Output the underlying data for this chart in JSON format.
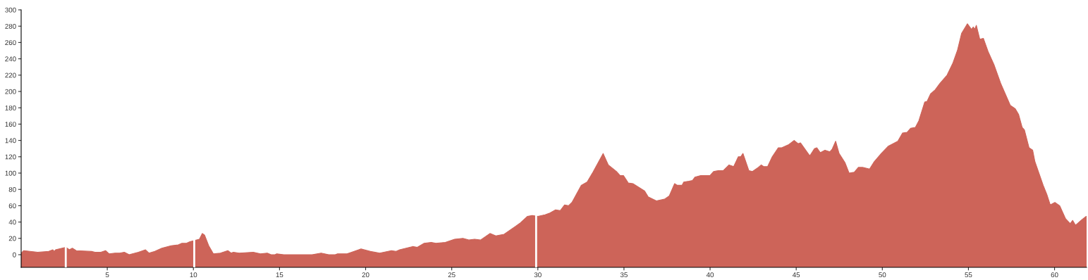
{
  "chart_data": {
    "type": "area",
    "xlim": [
      0,
      61.86
    ],
    "ylim": [
      -15.5,
      300
    ],
    "xticks": [
      5,
      10,
      15,
      20,
      25,
      30,
      35,
      40,
      45,
      50,
      55,
      60
    ],
    "yticks": [
      0,
      20,
      40,
      60,
      80,
      100,
      120,
      140,
      160,
      180,
      200,
      220,
      240,
      260,
      280,
      300
    ],
    "grid": false,
    "legend": false,
    "bands": [
      {
        "axis": "y",
        "from": -15.5,
        "to": 0,
        "color": "#cd6459"
      }
    ],
    "ref_lines": [
      {
        "axis": "x",
        "value": 2.59,
        "color": "#ffffff"
      },
      {
        "axis": "x",
        "value": 10.05,
        "color": "#ffffff"
      },
      {
        "axis": "x",
        "value": 29.9,
        "color": "#ffffff"
      }
    ],
    "series": [
      {
        "color": "#cd6459",
        "x": [
          0,
          0.15,
          0.96,
          1.6,
          1.84,
          1.92,
          2.0,
          2.59,
          2.8,
          2.97,
          3.2,
          4.09,
          4.29,
          4.63,
          4.9,
          5.11,
          5.45,
          5.72,
          5.99,
          6.27,
          6.81,
          7.22,
          7.42,
          7.76,
          8.17,
          8.71,
          9.12,
          9.33,
          9.6,
          9.8,
          10.35,
          10.52,
          10.65,
          10.89,
          11.16,
          11.57,
          12.0,
          12.19,
          12.32,
          12.66,
          13.48,
          13.89,
          14.29,
          14.63,
          14.84,
          15.65,
          16.33,
          16.6,
          17.42,
          18.1,
          18.37,
          18.92,
          19.19,
          19.73,
          20.28,
          20.82,
          21.5,
          21.77,
          21.98,
          22.73,
          23.0,
          23.4,
          23.81,
          24.08,
          24.63,
          25.17,
          25.65,
          25.99,
          26.33,
          26.67,
          27.22,
          27.56,
          28.04,
          28.72,
          28.99,
          29.4,
          29.67,
          30.01,
          30.42,
          30.7,
          31.03,
          31.3,
          31.55,
          31.78,
          31.98,
          32.52,
          32.86,
          33.2,
          33.79,
          34.09,
          34.56,
          34.77,
          34.97,
          35.25,
          35.52,
          36.2,
          36.4,
          36.88,
          37.35,
          37.63,
          37.94,
          38.1,
          38.37,
          38.47,
          38.78,
          38.98,
          39.12,
          39.46,
          40.0,
          40.21,
          40.48,
          40.76,
          41.1,
          41.37,
          41.64,
          41.78,
          41.91,
          42.25,
          42.46,
          42.8,
          42.97,
          43.11,
          43.34,
          43.61,
          43.96,
          44.16,
          44.57,
          44.88,
          45.11,
          45.25,
          45.79,
          46.06,
          46.2,
          46.4,
          46.67,
          46.95,
          47.08,
          47.29,
          47.49,
          47.83,
          48.07,
          48.37,
          48.61,
          48.85,
          49.26,
          49.53,
          49.94,
          50.35,
          50.9,
          51.17,
          51.44,
          51.65,
          51.92,
          52.12,
          52.46,
          52.6,
          52.8,
          53.07,
          53.35,
          53.76,
          54.1,
          54.37,
          54.6,
          54.94,
          55.18,
          55.28,
          55.36,
          55.46,
          55.66,
          55.87,
          56.14,
          56.48,
          56.89,
          57.43,
          57.71,
          57.91,
          58.12,
          58.25,
          58.52,
          58.73,
          58.86,
          59.34,
          59.55,
          59.75,
          60.02,
          60.3,
          60.64,
          60.91,
          61.05,
          61.22,
          61.59,
          61.84
        ],
        "values": [
          2,
          5,
          3,
          4,
          6,
          4,
          6,
          9,
          6,
          8,
          5,
          4,
          3,
          3,
          5,
          1,
          2,
          2,
          3,
          0,
          3,
          6,
          2,
          4,
          8,
          11,
          12,
          14,
          14,
          16,
          19,
          26,
          24,
          11,
          1,
          2,
          5,
          2,
          3,
          2,
          3,
          1,
          2,
          -1,
          1,
          -1,
          0,
          -1,
          2,
          -1,
          1,
          1,
          3,
          7,
          4,
          2,
          5,
          4,
          6,
          10,
          9,
          14,
          15,
          14,
          15,
          19,
          20,
          18,
          19,
          18,
          26,
          23,
          25,
          35,
          39,
          47,
          48,
          47,
          49,
          51,
          55,
          54,
          61,
          60,
          64,
          85,
          89,
          101,
          124,
          110,
          102,
          97,
          97,
          88,
          87,
          78,
          71,
          66,
          68,
          72,
          87,
          85,
          85,
          89,
          90,
          91,
          95,
          97,
          97,
          102,
          103,
          103,
          110,
          108,
          120,
          120,
          124,
          103,
          102,
          107,
          110,
          108,
          108,
          120,
          131,
          131,
          135,
          140,
          136,
          137,
          121,
          130,
          131,
          125,
          128,
          126,
          129,
          139,
          124,
          113,
          100,
          101,
          107,
          107,
          105,
          114,
          124,
          133,
          139,
          149,
          150,
          155,
          156,
          164,
          187,
          188,
          197,
          202,
          210,
          220,
          235,
          251,
          271,
          283,
          276,
          279,
          276,
          281,
          264,
          265,
          249,
          233,
          209,
          183,
          179,
          172,
          156,
          153,
          131,
          128,
          114,
          85,
          74,
          61,
          64,
          60,
          44,
          38,
          42,
          36,
          43,
          47
        ]
      }
    ]
  }
}
